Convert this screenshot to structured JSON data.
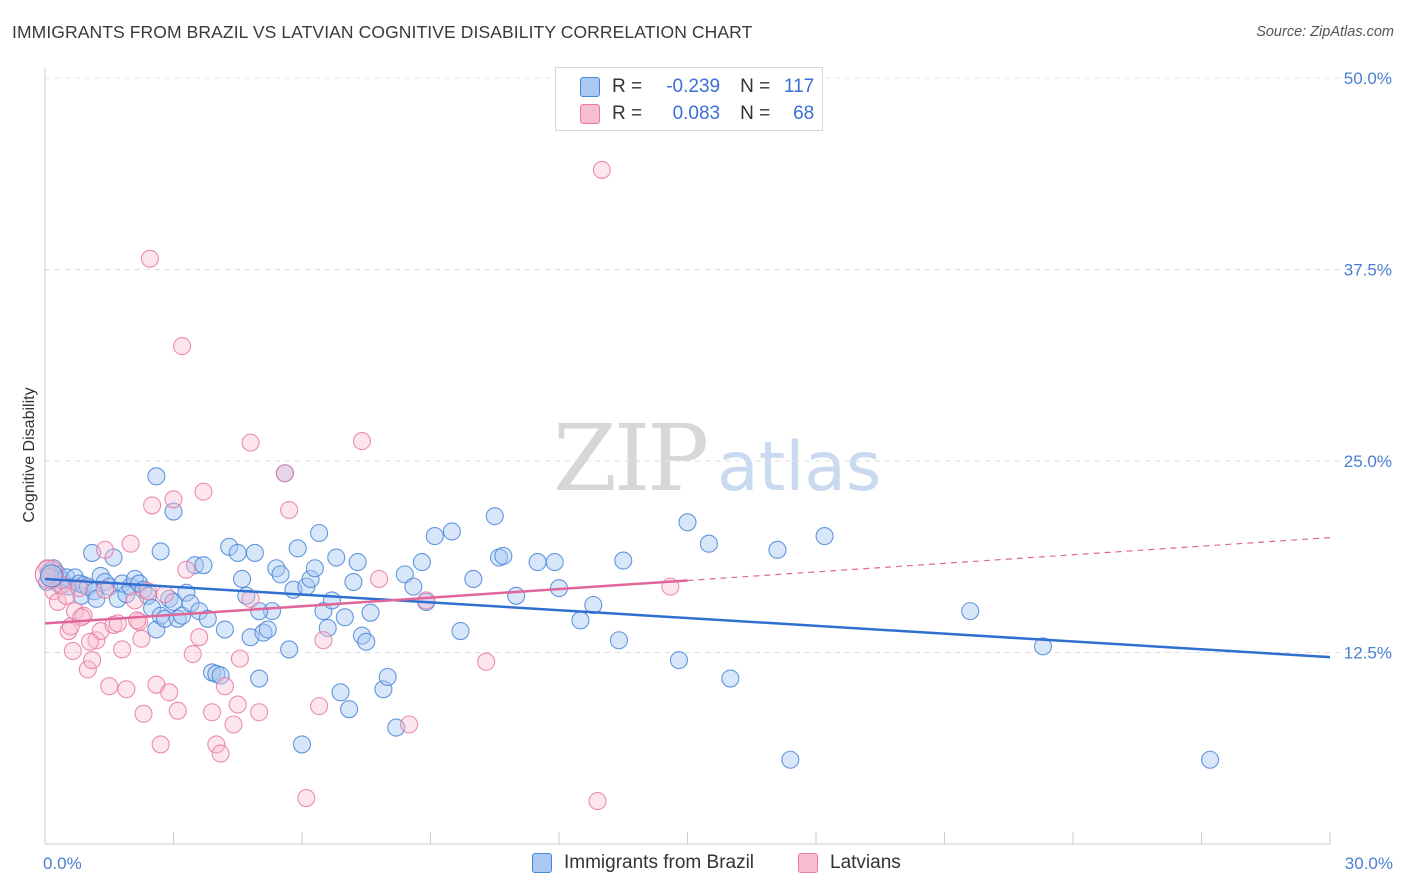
{
  "header": {
    "title": "IMMIGRANTS FROM BRAZIL VS LATVIAN COGNITIVE DISABILITY CORRELATION CHART",
    "source": "Source: ZipAtlas.com"
  },
  "watermark": {
    "zip": "ZIP",
    "atlas": "atlas"
  },
  "legend": {
    "rows": [
      {
        "r_label": "R =",
        "r_value": "-0.239",
        "n_label": "N =",
        "n_value": "117",
        "color": "#a9c8f2"
      },
      {
        "r_label": "R =",
        "r_value": "0.083",
        "n_label": "N =",
        "n_value": "68",
        "color": "#f7bdd0"
      }
    ]
  },
  "bottom_legend": [
    {
      "label": "Immigrants from Brazil",
      "color": "#a9c8f2"
    },
    {
      "label": "Latvians",
      "color": "#f7bdd0"
    }
  ],
  "chart_data": {
    "type": "scatter",
    "title": "IMMIGRANTS FROM BRAZIL VS LATVIAN COGNITIVE DISABILITY CORRELATION CHART",
    "ylabel": "Cognitive Disability",
    "xlabel": "",
    "xlim": [
      0,
      30
    ],
    "ylim": [
      0,
      50
    ],
    "x_tick_labels": [
      "0.0%",
      "30.0%"
    ],
    "y_ticks": [
      12.5,
      25.0,
      37.5,
      50.0
    ],
    "y_tick_labels": [
      "12.5%",
      "25.0%",
      "37.5%",
      "50.0%"
    ],
    "grid": "horizontal dashed",
    "legend_position": "top-center",
    "colors": {
      "brazil": "#4a86d8",
      "latvians": "#e87aa3",
      "brazil_line": "#2f6fd0",
      "latvians_line": "#e0669a"
    },
    "series": [
      {
        "name": "Immigrants from Brazil",
        "trend": {
          "x": [
            0,
            30
          ],
          "y": [
            17.3,
            12.2
          ]
        },
        "points": [
          [
            0.05,
            17.1
          ],
          [
            0.1,
            17.8
          ],
          [
            0.15,
            17.5
          ],
          [
            0.2,
            18.0
          ],
          [
            0.25,
            17.3
          ],
          [
            0.3,
            17.6
          ],
          [
            0.35,
            16.9
          ],
          [
            0.4,
            17.2
          ],
          [
            0.5,
            17.4
          ],
          [
            0.55,
            16.8
          ],
          [
            0.7,
            17.4
          ],
          [
            0.8,
            17.0
          ],
          [
            0.85,
            16.2
          ],
          [
            0.9,
            16.9
          ],
          [
            1.0,
            16.8
          ],
          [
            1.1,
            19.0
          ],
          [
            1.15,
            16.5
          ],
          [
            1.2,
            16.0
          ],
          [
            1.3,
            17.5
          ],
          [
            1.4,
            17.1
          ],
          [
            1.5,
            16.8
          ],
          [
            1.6,
            18.7
          ],
          [
            1.7,
            16.0
          ],
          [
            1.8,
            17.0
          ],
          [
            1.9,
            16.3
          ],
          [
            2.0,
            16.8
          ],
          [
            2.1,
            17.3
          ],
          [
            2.2,
            17.0
          ],
          [
            2.3,
            16.6
          ],
          [
            2.4,
            16.2
          ],
          [
            2.5,
            15.4
          ],
          [
            2.6,
            14.0
          ],
          [
            2.7,
            14.9
          ],
          [
            2.8,
            14.7
          ],
          [
            2.9,
            16.0
          ],
          [
            3.0,
            15.8
          ],
          [
            3.1,
            14.7
          ],
          [
            3.2,
            14.9
          ],
          [
            3.3,
            16.4
          ],
          [
            3.4,
            15.7
          ],
          [
            2.7,
            19.1
          ],
          [
            2.6,
            24.0
          ],
          [
            3.0,
            21.7
          ],
          [
            3.5,
            18.2
          ],
          [
            3.6,
            15.2
          ],
          [
            3.8,
            14.7
          ],
          [
            3.9,
            11.2
          ],
          [
            4.0,
            11.1
          ],
          [
            4.1,
            11.0
          ],
          [
            4.2,
            14.0
          ],
          [
            4.3,
            19.4
          ],
          [
            4.5,
            19.0
          ],
          [
            4.6,
            17.3
          ],
          [
            4.7,
            16.2
          ],
          [
            4.8,
            13.5
          ],
          [
            4.9,
            19.0
          ],
          [
            5.0,
            10.8
          ],
          [
            5.1,
            13.8
          ],
          [
            5.2,
            14.0
          ],
          [
            5.3,
            15.2
          ],
          [
            5.4,
            18.0
          ],
          [
            5.5,
            17.6
          ],
          [
            5.0,
            15.2
          ],
          [
            5.6,
            24.2
          ],
          [
            5.7,
            12.7
          ],
          [
            5.8,
            16.6
          ],
          [
            5.9,
            19.3
          ],
          [
            6.0,
            6.5
          ],
          [
            6.1,
            16.8
          ],
          [
            6.2,
            17.3
          ],
          [
            6.3,
            18.0
          ],
          [
            6.4,
            20.3
          ],
          [
            6.5,
            15.2
          ],
          [
            6.6,
            14.1
          ],
          [
            6.7,
            15.9
          ],
          [
            6.8,
            18.7
          ],
          [
            6.9,
            9.9
          ],
          [
            7.0,
            14.8
          ],
          [
            7.1,
            8.8
          ],
          [
            7.2,
            17.1
          ],
          [
            7.3,
            18.4
          ],
          [
            7.4,
            13.6
          ],
          [
            7.5,
            13.2
          ],
          [
            7.6,
            15.1
          ],
          [
            7.9,
            10.1
          ],
          [
            8.0,
            10.9
          ],
          [
            8.2,
            7.6
          ],
          [
            8.4,
            17.6
          ],
          [
            8.6,
            16.8
          ],
          [
            8.8,
            18.4
          ],
          [
            8.9,
            15.8
          ],
          [
            9.1,
            20.1
          ],
          [
            9.5,
            20.4
          ],
          [
            9.7,
            13.9
          ],
          [
            10.0,
            17.3
          ],
          [
            10.5,
            21.4
          ],
          [
            10.6,
            18.7
          ],
          [
            10.7,
            18.8
          ],
          [
            11.0,
            16.2
          ],
          [
            11.5,
            18.4
          ],
          [
            12.0,
            16.7
          ],
          [
            12.5,
            14.6
          ],
          [
            12.8,
            15.6
          ],
          [
            11.9,
            18.4
          ],
          [
            13.4,
            13.3
          ],
          [
            14.8,
            12.0
          ],
          [
            15.0,
            21.0
          ],
          [
            15.5,
            19.6
          ],
          [
            16.0,
            10.8
          ],
          [
            17.1,
            19.2
          ],
          [
            17.4,
            5.5
          ],
          [
            18.2,
            20.1
          ],
          [
            21.6,
            15.2
          ],
          [
            23.3,
            12.9
          ],
          [
            27.2,
            5.5
          ],
          [
            13.5,
            18.5
          ],
          [
            3.7,
            18.2
          ]
        ]
      },
      {
        "name": "Latvians",
        "trend": {
          "x": [
            0,
            15
          ],
          "y": [
            14.4,
            17.2
          ]
        },
        "trend_extension": {
          "x": [
            15,
            30
          ],
          "y": [
            17.2,
            20.0
          ]
        },
        "points": [
          [
            0.05,
            18.0
          ],
          [
            0.1,
            17.4
          ],
          [
            0.2,
            16.5
          ],
          [
            0.3,
            15.8
          ],
          [
            0.4,
            16.9
          ],
          [
            0.5,
            16.2
          ],
          [
            0.55,
            13.9
          ],
          [
            0.6,
            14.2
          ],
          [
            0.7,
            15.2
          ],
          [
            0.8,
            16.7
          ],
          [
            0.9,
            14.9
          ],
          [
            1.0,
            11.4
          ],
          [
            1.1,
            12.0
          ],
          [
            1.2,
            13.3
          ],
          [
            1.3,
            13.9
          ],
          [
            1.4,
            16.6
          ],
          [
            1.5,
            10.3
          ],
          [
            1.6,
            14.3
          ],
          [
            1.7,
            14.4
          ],
          [
            1.8,
            12.7
          ],
          [
            1.9,
            10.1
          ],
          [
            1.4,
            19.2
          ],
          [
            2.0,
            19.6
          ],
          [
            2.1,
            15.9
          ],
          [
            2.2,
            14.5
          ],
          [
            2.25,
            13.4
          ],
          [
            2.3,
            8.5
          ],
          [
            2.4,
            16.5
          ],
          [
            2.45,
            38.2
          ],
          [
            2.5,
            22.1
          ],
          [
            2.6,
            10.4
          ],
          [
            2.7,
            6.5
          ],
          [
            2.8,
            16.3
          ],
          [
            2.9,
            9.9
          ],
          [
            3.0,
            22.5
          ],
          [
            3.1,
            8.7
          ],
          [
            3.2,
            32.5
          ],
          [
            3.3,
            17.9
          ],
          [
            3.6,
            13.5
          ],
          [
            3.7,
            23.0
          ],
          [
            3.9,
            8.6
          ],
          [
            4.0,
            6.5
          ],
          [
            4.1,
            5.9
          ],
          [
            4.2,
            10.3
          ],
          [
            4.4,
            7.8
          ],
          [
            4.5,
            9.1
          ],
          [
            4.8,
            26.2
          ],
          [
            4.8,
            16.0
          ],
          [
            5.0,
            8.6
          ],
          [
            5.6,
            24.2
          ],
          [
            5.7,
            21.8
          ],
          [
            6.1,
            3.0
          ],
          [
            6.4,
            9.0
          ],
          [
            6.5,
            13.3
          ],
          [
            7.4,
            26.3
          ],
          [
            7.8,
            17.3
          ],
          [
            8.5,
            7.8
          ],
          [
            8.9,
            15.9
          ],
          [
            10.3,
            11.9
          ],
          [
            13.0,
            44.0
          ],
          [
            12.9,
            2.8
          ],
          [
            14.6,
            16.8
          ],
          [
            0.85,
            14.8
          ],
          [
            1.05,
            13.2
          ],
          [
            0.65,
            12.6
          ],
          [
            2.15,
            14.6
          ],
          [
            3.45,
            12.4
          ],
          [
            4.55,
            12.1
          ]
        ]
      }
    ]
  }
}
